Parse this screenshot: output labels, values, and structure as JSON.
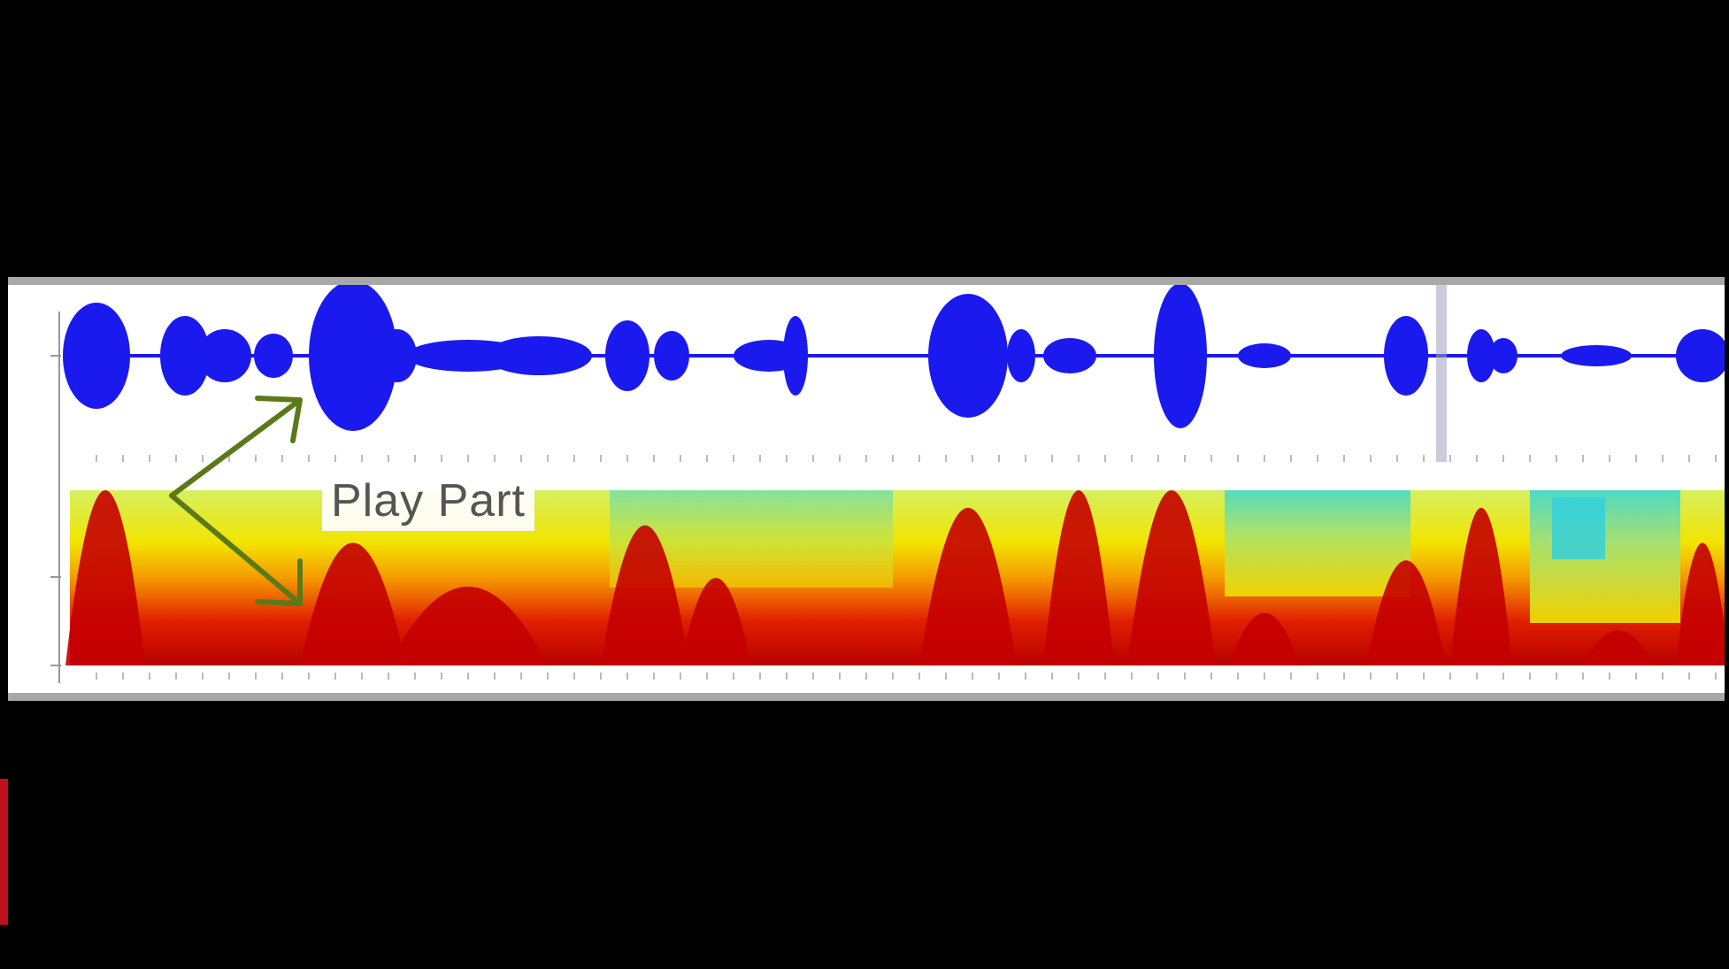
{
  "annotation": {
    "play_part_label": "Play Part"
  },
  "colors": {
    "waveform": "#1a1aee",
    "spectrogram_low": "#cc0000",
    "spectrogram_mid": "#f5e000",
    "spectrogram_high": "#33dddd",
    "arrow": "#5a7a1a",
    "frame_border": "#a8a8a8"
  },
  "icons": {
    "arrow_up": "arrow-up-right-icon",
    "arrow_down": "arrow-down-right-icon"
  }
}
